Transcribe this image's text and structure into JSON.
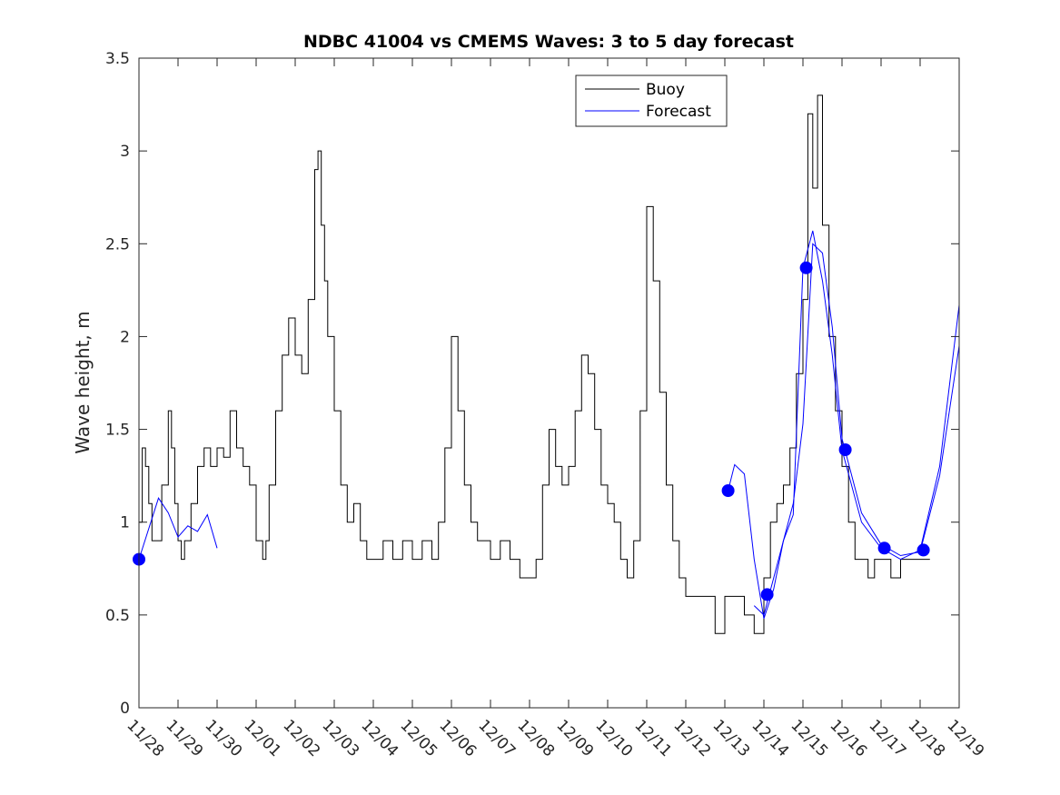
{
  "chart_data": {
    "type": "line",
    "title": "NDBC 41004 vs CMEMS Waves: 3 to 5 day forecast",
    "xlabel": "",
    "ylabel": "Wave height, m",
    "ylim": [
      0,
      3.5
    ],
    "xlim": [
      "11/28",
      "12/19"
    ],
    "x_ticks": [
      "11/28",
      "11/29",
      "11/30",
      "12/01",
      "12/02",
      "12/03",
      "12/04",
      "12/05",
      "12/06",
      "12/07",
      "12/08",
      "12/09",
      "12/10",
      "12/11",
      "12/12",
      "12/13",
      "12/14",
      "12/15",
      "12/16",
      "12/17",
      "12/18",
      "12/19"
    ],
    "y_ticks": [
      "0",
      "0.5",
      "1",
      "1.5",
      "2",
      "2.5",
      "3",
      "3.5"
    ],
    "grid": false,
    "legend": {
      "placement": "top-right",
      "entries": [
        "Buoy",
        "Forecast"
      ]
    },
    "colors": {
      "buoy": "#000000",
      "forecast": "#0000ff",
      "markers": "#0000ff"
    },
    "series": [
      {
        "name": "Buoy",
        "x": [
          "11/28 00:00",
          "11/28 02:00",
          "11/28 04:00",
          "11/28 06:00",
          "11/28 08:00",
          "11/28 10:00",
          "11/28 14:00",
          "11/28 18:00",
          "11/28 20:00",
          "11/28 22:00",
          "11/29 00:00",
          "11/29 02:00",
          "11/29 04:00",
          "11/29 08:00",
          "11/29 12:00",
          "11/29 16:00",
          "11/29 20:00",
          "11/30 00:00",
          "11/30 04:00",
          "11/30 08:00",
          "11/30 12:00",
          "11/30 16:00",
          "11/30 20:00",
          "12/01 00:00",
          "12/01 04:00",
          "12/01 06:00",
          "12/01 08:00",
          "12/01 12:00",
          "12/01 16:00",
          "12/01 20:00",
          "12/02 00:00",
          "12/02 04:00",
          "12/02 08:00",
          "12/02 12:00",
          "12/02 14:00",
          "12/02 16:00",
          "12/02 18:00",
          "12/02 20:00",
          "12/03 00:00",
          "12/03 04:00",
          "12/03 08:00",
          "12/03 12:00",
          "12/03 16:00",
          "12/03 20:00",
          "12/04 00:00",
          "12/04 06:00",
          "12/04 12:00",
          "12/04 18:00",
          "12/05 00:00",
          "12/05 06:00",
          "12/05 12:00",
          "12/05 16:00",
          "12/05 20:00",
          "12/06 00:00",
          "12/06 04:00",
          "12/06 08:00",
          "12/06 12:00",
          "12/06 16:00",
          "12/06 20:00",
          "12/07 00:00",
          "12/07 06:00",
          "12/07 12:00",
          "12/07 18:00",
          "12/08 00:00",
          "12/08 04:00",
          "12/08 08:00",
          "12/08 12:00",
          "12/08 16:00",
          "12/08 20:00",
          "12/09 00:00",
          "12/09 04:00",
          "12/09 08:00",
          "12/09 12:00",
          "12/09 16:00",
          "12/09 20:00",
          "12/10 00:00",
          "12/10 04:00",
          "12/10 08:00",
          "12/10 12:00",
          "12/10 16:00",
          "12/10 20:00",
          "12/11 00:00",
          "12/11 04:00",
          "12/11 08:00",
          "12/11 12:00",
          "12/11 16:00",
          "12/11 20:00",
          "12/12 00:00",
          "12/12 06:00",
          "12/12 12:00",
          "12/12 18:00",
          "12/13 00:00",
          "12/13 06:00",
          "12/13 12:00",
          "12/13 18:00",
          "12/14 00:00",
          "12/14 04:00",
          "12/14 08:00",
          "12/14 12:00",
          "12/14 16:00",
          "12/14 20:00",
          "12/15 00:00",
          "12/15 03:00",
          "12/15 06:00",
          "12/15 09:00",
          "12/15 12:00",
          "12/15 16:00",
          "12/15 20:00",
          "12/16 00:00",
          "12/16 04:00",
          "12/16 08:00",
          "12/16 12:00",
          "12/16 16:00",
          "12/16 20:00",
          "12/17 00:00",
          "12/17 06:00",
          "12/17 12:00",
          "12/17 18:00",
          "12/18 00:00",
          "12/18 06:00"
        ],
        "values": [
          1.0,
          1.4,
          1.3,
          1.1,
          0.9,
          0.9,
          1.2,
          1.6,
          1.4,
          1.1,
          0.9,
          0.8,
          0.9,
          1.1,
          1.3,
          1.4,
          1.3,
          1.4,
          1.35,
          1.6,
          1.4,
          1.3,
          1.2,
          0.9,
          0.8,
          0.9,
          1.2,
          1.6,
          1.9,
          2.1,
          1.9,
          1.8,
          2.2,
          2.9,
          3.0,
          2.6,
          2.3,
          2.0,
          1.6,
          1.2,
          1.0,
          1.1,
          0.9,
          0.8,
          0.8,
          0.9,
          0.8,
          0.9,
          0.8,
          0.9,
          0.8,
          1.0,
          1.4,
          2.0,
          1.6,
          1.2,
          1.0,
          0.9,
          0.9,
          0.8,
          0.9,
          0.8,
          0.7,
          0.7,
          0.8,
          1.2,
          1.5,
          1.3,
          1.2,
          1.3,
          1.6,
          1.9,
          1.8,
          1.5,
          1.2,
          1.1,
          1.0,
          0.8,
          0.7,
          0.9,
          1.6,
          2.7,
          2.3,
          1.7,
          1.2,
          0.9,
          0.7,
          0.6,
          0.6,
          0.6,
          0.4,
          0.6,
          0.6,
          0.5,
          0.4,
          0.7,
          1.0,
          1.1,
          1.2,
          1.4,
          1.8,
          2.2,
          3.2,
          2.8,
          3.3,
          2.6,
          2.0,
          1.6,
          1.3,
          1.0,
          0.8,
          0.8,
          0.7,
          0.8,
          0.8,
          0.7,
          0.8,
          0.8,
          0.8,
          0.8
        ]
      },
      {
        "name": "Forecast",
        "segments": [
          {
            "x": [
              "11/28 00:00",
              "11/28 12:00",
              "11/28 18:00",
              "11/29 00:00",
              "11/29 06:00",
              "11/29 12:00",
              "11/29 18:00",
              "11/30 00:00"
            ],
            "values": [
              0.8,
              1.13,
              1.05,
              0.92,
              0.98,
              0.95,
              1.04,
              0.86
            ]
          },
          {
            "x": [
              "12/13 02:00",
              "12/13 06:00",
              "12/13 12:00",
              "12/13 18:00",
              "12/14 00:00",
              "12/14 06:00",
              "12/14 12:00",
              "12/14 18:00",
              "12/15 00:00",
              "12/15 06:00",
              "12/15 12:00",
              "12/15 18:00",
              "12/16 00:00",
              "12/16 12:00",
              "12/17 00:00",
              "12/17 12:00",
              "12/18 00:00",
              "12/18 12:00",
              "12/19 00:00"
            ],
            "values": [
              1.17,
              1.31,
              1.26,
              0.8,
              0.48,
              0.64,
              0.9,
              1.04,
              2.37,
              2.57,
              2.3,
              1.9,
              1.39,
              1.0,
              0.86,
              0.8,
              0.85,
              1.3,
              2.17
            ]
          },
          {
            "x": [
              "12/13 18:00",
              "12/14 00:00",
              "12/14 06:00",
              "12/14 12:00",
              "12/14 18:00",
              "12/15 00:00",
              "12/15 06:00",
              "12/15 12:00",
              "12/15 18:00",
              "12/16 00:00",
              "12/16 12:00",
              "12/17 00:00",
              "12/17 12:00",
              "12/18 00:00",
              "12/18 12:00",
              "12/19 00:00"
            ],
            "values": [
              0.55,
              0.5,
              0.7,
              0.9,
              1.1,
              1.53,
              2.5,
              2.45,
              2.05,
              1.45,
              1.05,
              0.88,
              0.82,
              0.84,
              1.25,
              1.95
            ]
          }
        ]
      }
    ],
    "markers": {
      "x": [
        "11/28 00:00",
        "12/13 02:00",
        "12/14 02:00",
        "12/15 02:00",
        "12/16 02:00",
        "12/17 02:00",
        "12/18 02:00"
      ],
      "values": [
        0.8,
        1.17,
        0.61,
        2.37,
        1.39,
        0.86,
        0.85
      ]
    }
  }
}
